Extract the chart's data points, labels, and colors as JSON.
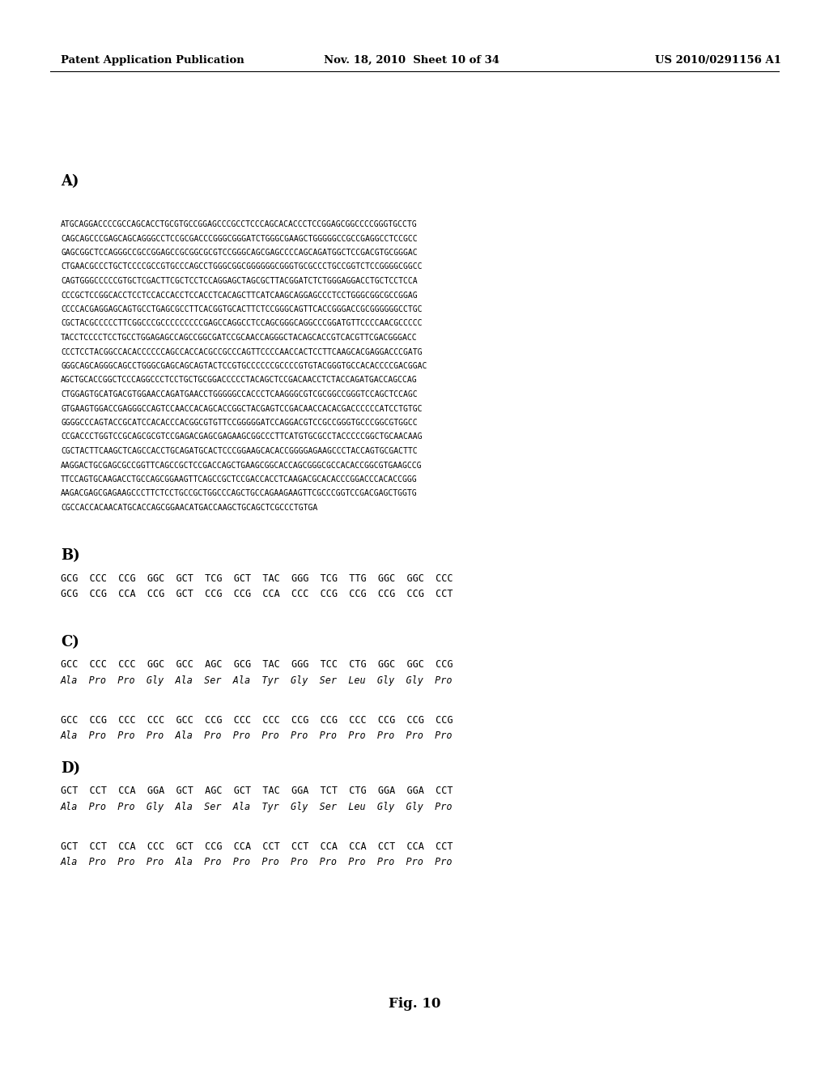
{
  "header_left": "Patent Application Publication",
  "header_mid": "Nov. 18, 2010  Sheet 10 of 34",
  "header_right": "US 2010/0291156 A1",
  "section_A_label": "A)",
  "section_A_text": [
    "ATGCAGGACCCCGCCAGCACCTGCGTGCCGGAGCCCGCCTCCCAGCACACCCTCCGGAGCGGCCCCGGGTGCCTG",
    "CAGCAGCCCGAGCAGCAGGGCCTCCGCGACCCGGGCGGGATCTGGGCGAAGCTGGGGGCCGCCGAGGCCTCCGCC",
    "GAGCGGCTCCAGGGCCGCCGGAGCCGCGGCGCGTCCGGGCAGCGAGCCCCAGCAGATGGCTCCGACGTGCGGGAC",
    "CTGAACGCCCTGCTCCCCGCCGTGCCCAGCCTGGGCGGCGGGGGGCGGGTGCGCCCTGCCGGTCTCCGGGGCGGCC",
    "CAGTGGGCCCCCGTGCTCGACTTCGCTCCTCCAGGAGCTAGCGCTTACGGATCTCTGGGAGGACCTGCTCCTCCA",
    "CCCGCTCCGGCACCTCCTCCACCACCTCCACCTCACAGCTTCATCAAGCAGGAGCCCTCCTGGGCGGCGCCGGAG",
    "CCCCACGAGGAGCAGTGCCTGAGCGCCTTCACGGTGCACTTCTCCGGGCAGTTCACCGGGACCGCGGGGGGCCTGC",
    "CGCTACGCCCCCTTCGGCCCGCCCCCCCCCGAGCCAGGCCTCCAGCGGGCAGGCCCGGATGTTCCCCAACGCCCCC",
    "TACCTCCCCTCCTGCCTGGAGAGCCAGCCGGCGATCCGCAACCAGGGCTACAGCACCGTCACGTTCGACGGGACC",
    "CCCTCCTACGGCCACACCCCCCAGCCACCACGCCGCCCAGTTCCCCAACCACTCCTTCAAGCACGAGGACCCGATG",
    "GGGCAGCAGGGCAGCCTGGGCGAGCAGCAGTACTCCGTGCCCCCCGCCCCGTGTACGGGTGCCACACCCCGACGGAC",
    "AGCTGCACCGGCTCCCAGGCCCTCCTGCTGCGGACCCCCTACAGCTCCGACAACCTCTACCAGATGACCAGCCAG",
    "CTGGAGTGCATGACGTGGAACCAGATGAACCTGGGGGCCACCCTCAAGGGCGTCGCGGCCGGGTCCAGCTCCAGC",
    "GTGAAGTGGACCGAGGGCCAGTCCAACCACAGCACCGGCTACGAGTCCGACAACCACACGACCCCCCATCCTGTGC",
    "GGGGCCCAGTACCGCATCCACACCCACGGCGTGTTCCGGGGGATCCAGGACGTCCGCCGGGTGCCCGGCGTGGCC",
    "CCGACCCTGGTCCGCAGCGCGTCCGAGACGAGCGAGAAGCGGCCCTTCATGTGCGCCTACCCCCGGCTGCAACAAG",
    "CGCTACTTCAAGCTCAGCCACCTGCAGATGCACTCCCGGAAGCACACCGGGGAGAAGCCCTACCAGTGCGACTTC",
    "AAGGACTGCGAGCGCCGGTTCAGCCGCTCCGACCAGCTGAAGCGGCACCAGCGGGCGCCACACCGGCGTGAAGCCG",
    "TTCCAGTGCAAGACCTGCCAGCGGAAGTTCAGCCGCTCCGACCACCTCAAGACGCACACCCGGACCCACACCGGG",
    "AAGACGAGCGAGAAGCCCTTCTCCTGCCGCTGGCCCAGCTGCCAGAAGAAGTTCGCCCGGTCCGACGAGCTGGTG",
    "CGCCACCACAACATGCACCAGCGGAACATGACCAAGCTGCAGCTCGCCCTGTGA"
  ],
  "section_B_label": "B)",
  "section_B_text": [
    "GCG  CCC  CCG  GGC  GCT  TCG  GCT  TAC  GGG  TCG  TTG  GGC  GGC  CCC",
    "GCG  CCG  CCA  CCG  GCT  CCG  CCG  CCA  CCC  CCG  CCG  CCG  CCG  CCT"
  ],
  "section_C_label": "C)",
  "section_C_text": [
    "GCC  CCC  CCC  GGC  GCC  AGC  GCG  TAC  GGG  TCC  CTG  GGC  GGC  CCG",
    "Ala  Pro  Pro  Gly  Ala  Ser  Ala  Tyr  Gly  Ser  Leu  Gly  Gly  Pro",
    "",
    "GCC  CCG  CCC  CCC  GCC  CCG  CCC  CCC  CCG  CCG  CCC  CCG  CCG  CCG",
    "Ala  Pro  Pro  Pro  Ala  Pro  Pro  Pro  Pro  Pro  Pro  Pro  Pro  Pro"
  ],
  "section_D_label": "D)",
  "section_D_text": [
    "GCT  CCT  CCA  GGA  GCT  AGC  GCT  TAC  GGA  TCT  CTG  GGA  GGA  CCT",
    "Ala  Pro  Pro  Gly  Ala  Ser  Ala  Tyr  Gly  Ser  Leu  Gly  Gly  Pro",
    "",
    "GCT  CCT  CCA  CCC  GCT  CCG  CCA  CCT  CCT  CCA  CCA  CCT  CCA  CCT",
    "Ala  Pro  Pro  Pro  Ala  Pro  Pro  Pro  Pro  Pro  Pro  Pro  Pro  Pro"
  ],
  "figure_label": "Fig. 10",
  "bg_color": "#ffffff",
  "text_color": "#000000"
}
